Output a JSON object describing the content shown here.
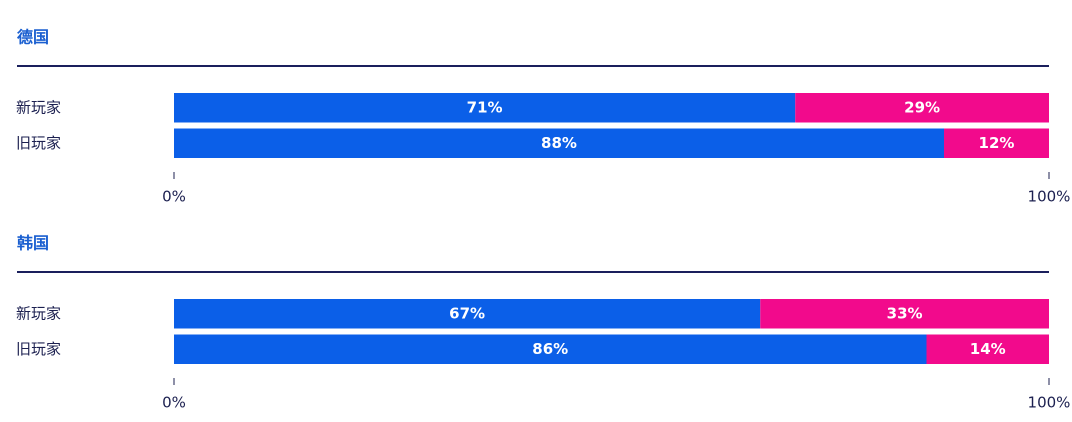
{
  "chart_data": [
    {
      "type": "stacked-bar-horizontal",
      "title": "德国",
      "categories": [
        "新玩家",
        "旧玩家"
      ],
      "series": [
        {
          "color": "#0b5fe8",
          "values": [
            71,
            88
          ],
          "value_labels": [
            "71%",
            "88%"
          ]
        },
        {
          "color": "#f20a8c",
          "values": [
            29,
            12
          ],
          "value_labels": [
            "29%",
            "12%"
          ]
        }
      ],
      "xlim": [
        0,
        100
      ],
      "xticks": [
        {
          "value": 0,
          "label": "0%"
        },
        {
          "value": 100,
          "label": "100%"
        }
      ]
    },
    {
      "type": "stacked-bar-horizontal",
      "title": "韩国",
      "categories": [
        "新玩家",
        "旧玩家"
      ],
      "series": [
        {
          "color": "#0b5fe8",
          "values": [
            67,
            86
          ],
          "value_labels": [
            "67%",
            "86%"
          ]
        },
        {
          "color": "#f20a8c",
          "values": [
            33,
            14
          ],
          "value_labels": [
            "33%",
            "14%"
          ]
        }
      ],
      "xlim": [
        0,
        100
      ],
      "xticks": [
        {
          "value": 0,
          "label": "0%"
        },
        {
          "value": 100,
          "label": "100%"
        }
      ]
    }
  ]
}
